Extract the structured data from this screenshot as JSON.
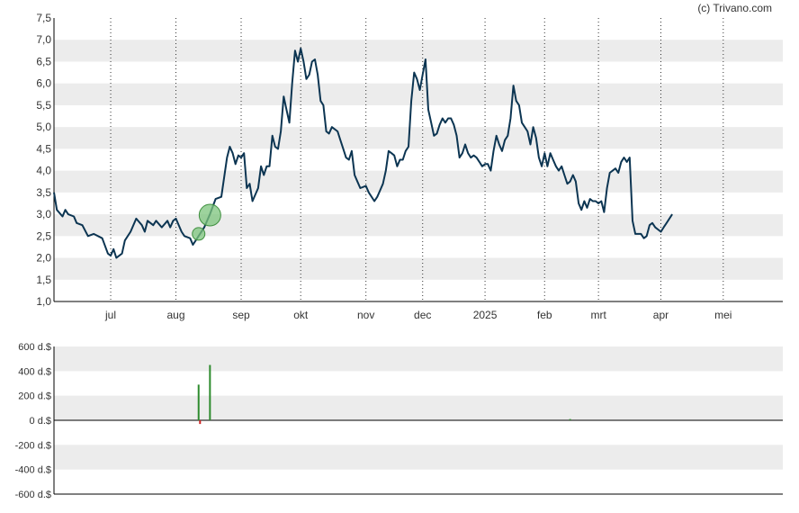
{
  "credit": "(c) Trivano.com",
  "colors": {
    "line": "#0c3552",
    "band": "#ececec",
    "vgrid": "#333333",
    "axis": "#000000",
    "text": "#333333",
    "buy": "#2e8b2e",
    "sell": "#cc2222",
    "bubble_fill": "#7cc47c",
    "bubble_stroke": "#3f8f3f"
  },
  "chart_data": [
    {
      "type": "line",
      "title": "",
      "ylim": [
        1.0,
        7.5
      ],
      "y_ticks": [
        "1,0",
        "1,5",
        "2,0",
        "2,5",
        "3,0",
        "3,5",
        "4,0",
        "4,5",
        "5,0",
        "5,5",
        "6,0",
        "6,5",
        "7,0",
        "7,5"
      ],
      "x_ticks": [
        {
          "label": "jul",
          "x": 20
        },
        {
          "label": "aug",
          "x": 43
        },
        {
          "label": "sep",
          "x": 66
        },
        {
          "label": "okt",
          "x": 87
        },
        {
          "label": "nov",
          "x": 110
        },
        {
          "label": "dec",
          "x": 130
        },
        {
          "label": "2025",
          "x": 152
        },
        {
          "label": "feb",
          "x": 173
        },
        {
          "label": "mrt",
          "x": 192
        },
        {
          "label": "apr",
          "x": 214
        },
        {
          "label": "mei",
          "x": 236
        }
      ],
      "x_range": [
        0,
        257
      ],
      "grid": "alternating horizontal bands; dotted vertical lines at month ticks",
      "series": [
        {
          "points": [
            [
              0,
              3.5
            ],
            [
              1,
              3.1
            ],
            [
              3,
              2.95
            ],
            [
              4,
              3.1
            ],
            [
              5,
              3.0
            ],
            [
              7,
              2.95
            ],
            [
              8,
              2.8
            ],
            [
              10,
              2.75
            ],
            [
              12,
              2.5
            ],
            [
              14,
              2.55
            ],
            [
              17,
              2.45
            ],
            [
              19,
              2.1
            ],
            [
              20,
              2.05
            ],
            [
              21,
              2.2
            ],
            [
              22,
              2.0
            ],
            [
              24,
              2.1
            ],
            [
              25,
              2.4
            ],
            [
              27,
              2.6
            ],
            [
              29,
              2.9
            ],
            [
              31,
              2.75
            ],
            [
              32,
              2.6
            ],
            [
              33,
              2.85
            ],
            [
              35,
              2.75
            ],
            [
              36,
              2.85
            ],
            [
              38,
              2.7
            ],
            [
              40,
              2.85
            ],
            [
              41,
              2.7
            ],
            [
              42,
              2.85
            ],
            [
              43,
              2.9
            ],
            [
              45,
              2.6
            ],
            [
              46,
              2.5
            ],
            [
              48,
              2.45
            ],
            [
              49,
              2.3
            ],
            [
              51,
              2.5
            ],
            [
              53,
              2.7
            ],
            [
              55,
              3.0
            ],
            [
              57,
              3.35
            ],
            [
              59,
              3.4
            ],
            [
              61,
              4.3
            ],
            [
              62,
              4.55
            ],
            [
              63,
              4.4
            ],
            [
              64,
              4.15
            ],
            [
              65,
              4.35
            ],
            [
              66,
              4.3
            ],
            [
              67,
              4.4
            ],
            [
              68,
              3.6
            ],
            [
              69,
              3.7
            ],
            [
              70,
              3.3
            ],
            [
              72,
              3.6
            ],
            [
              73,
              4.1
            ],
            [
              74,
              3.9
            ],
            [
              75,
              4.1
            ],
            [
              76,
              4.1
            ],
            [
              77,
              4.8
            ],
            [
              78,
              4.55
            ],
            [
              79,
              4.5
            ],
            [
              80,
              4.9
            ],
            [
              81,
              5.7
            ],
            [
              82,
              5.4
            ],
            [
              83,
              5.1
            ],
            [
              84,
              6.0
            ],
            [
              85,
              6.75
            ],
            [
              86,
              6.5
            ],
            [
              87,
              6.8
            ],
            [
              88,
              6.5
            ],
            [
              89,
              6.1
            ],
            [
              90,
              6.2
            ],
            [
              91,
              6.5
            ],
            [
              92,
              6.55
            ],
            [
              93,
              6.2
            ],
            [
              94,
              5.6
            ],
            [
              95,
              5.5
            ],
            [
              96,
              4.9
            ],
            [
              97,
              4.85
            ],
            [
              98,
              5.0
            ],
            [
              100,
              4.9
            ],
            [
              101,
              4.7
            ],
            [
              102,
              4.5
            ],
            [
              103,
              4.3
            ],
            [
              104,
              4.25
            ],
            [
              105,
              4.45
            ],
            [
              106,
              3.9
            ],
            [
              107,
              3.75
            ],
            [
              108,
              3.6
            ],
            [
              110,
              3.65
            ],
            [
              111,
              3.5
            ],
            [
              113,
              3.3
            ],
            [
              114,
              3.4
            ],
            [
              115,
              3.55
            ],
            [
              116,
              3.7
            ],
            [
              117,
              4.0
            ],
            [
              118,
              4.45
            ],
            [
              119,
              4.4
            ],
            [
              120,
              4.35
            ],
            [
              121,
              4.1
            ],
            [
              122,
              4.25
            ],
            [
              123,
              4.25
            ],
            [
              124,
              4.45
            ],
            [
              125,
              4.55
            ],
            [
              126,
              5.6
            ],
            [
              127,
              6.25
            ],
            [
              128,
              6.1
            ],
            [
              129,
              5.85
            ],
            [
              130,
              6.2
            ],
            [
              131,
              6.55
            ],
            [
              132,
              5.4
            ],
            [
              133,
              5.1
            ],
            [
              134,
              4.8
            ],
            [
              135,
              4.85
            ],
            [
              136,
              5.05
            ],
            [
              137,
              5.2
            ],
            [
              138,
              5.1
            ],
            [
              139,
              5.2
            ],
            [
              140,
              5.2
            ],
            [
              141,
              5.05
            ],
            [
              142,
              4.8
            ],
            [
              143,
              4.3
            ],
            [
              144,
              4.4
            ],
            [
              145,
              4.6
            ],
            [
              146,
              4.4
            ],
            [
              147,
              4.3
            ],
            [
              148,
              4.35
            ],
            [
              149,
              4.3
            ],
            [
              150,
              4.2
            ],
            [
              151,
              4.1
            ],
            [
              152,
              4.15
            ],
            [
              153,
              4.15
            ],
            [
              154,
              4.0
            ],
            [
              155,
              4.45
            ],
            [
              156,
              4.8
            ],
            [
              157,
              4.6
            ],
            [
              158,
              4.45
            ],
            [
              159,
              4.7
            ],
            [
              160,
              4.8
            ],
            [
              161,
              5.2
            ],
            [
              162,
              5.95
            ],
            [
              163,
              5.6
            ],
            [
              164,
              5.5
            ],
            [
              165,
              5.1
            ],
            [
              166,
              5.0
            ],
            [
              167,
              4.9
            ],
            [
              168,
              4.6
            ],
            [
              169,
              5.0
            ],
            [
              170,
              4.75
            ],
            [
              171,
              4.3
            ],
            [
              172,
              4.1
            ],
            [
              173,
              4.4
            ],
            [
              174,
              4.1
            ],
            [
              175,
              4.4
            ],
            [
              176,
              4.25
            ],
            [
              177,
              4.1
            ],
            [
              178,
              4.0
            ],
            [
              179,
              4.1
            ],
            [
              180,
              3.9
            ],
            [
              181,
              3.7
            ],
            [
              182,
              3.75
            ],
            [
              183,
              3.9
            ],
            [
              184,
              3.75
            ],
            [
              185,
              3.25
            ],
            [
              186,
              3.1
            ],
            [
              187,
              3.3
            ],
            [
              188,
              3.15
            ],
            [
              189,
              3.35
            ],
            [
              190,
              3.3
            ],
            [
              191,
              3.3
            ],
            [
              192,
              3.25
            ],
            [
              193,
              3.3
            ],
            [
              194,
              3.05
            ],
            [
              195,
              3.6
            ],
            [
              196,
              3.95
            ],
            [
              197,
              4.0
            ],
            [
              198,
              4.05
            ],
            [
              199,
              3.95
            ],
            [
              200,
              4.2
            ],
            [
              201,
              4.3
            ],
            [
              202,
              4.2
            ],
            [
              203,
              4.3
            ],
            [
              204,
              2.85
            ],
            [
              205,
              2.55
            ],
            [
              207,
              2.55
            ],
            [
              208,
              2.45
            ],
            [
              209,
              2.5
            ],
            [
              210,
              2.75
            ],
            [
              211,
              2.8
            ],
            [
              212,
              2.7
            ],
            [
              213,
              2.65
            ],
            [
              214,
              2.6
            ],
            [
              215,
              2.7
            ],
            [
              216,
              2.8
            ],
            [
              218,
              3.0
            ]
          ]
        }
      ],
      "markers": [
        {
          "type": "buy",
          "x": 51,
          "y": 2.55,
          "size": "small"
        },
        {
          "type": "buy",
          "x": 55,
          "y": 2.98,
          "size": "large"
        }
      ]
    },
    {
      "type": "bar",
      "title": "",
      "ylim": [
        -600,
        600
      ],
      "y_ticks": [
        "600 d.$",
        "400 d.$",
        "200 d.$",
        "0 d.$",
        "-200 d.$",
        "-400 d.$",
        "-600 d.$"
      ],
      "bars": [
        {
          "x": 51,
          "value": 290,
          "type": "buy"
        },
        {
          "x": 51.5,
          "value": -30,
          "type": "sell"
        },
        {
          "x": 55,
          "value": 450,
          "type": "buy"
        },
        {
          "x": 182,
          "value": 10,
          "type": "buy"
        }
      ]
    }
  ]
}
